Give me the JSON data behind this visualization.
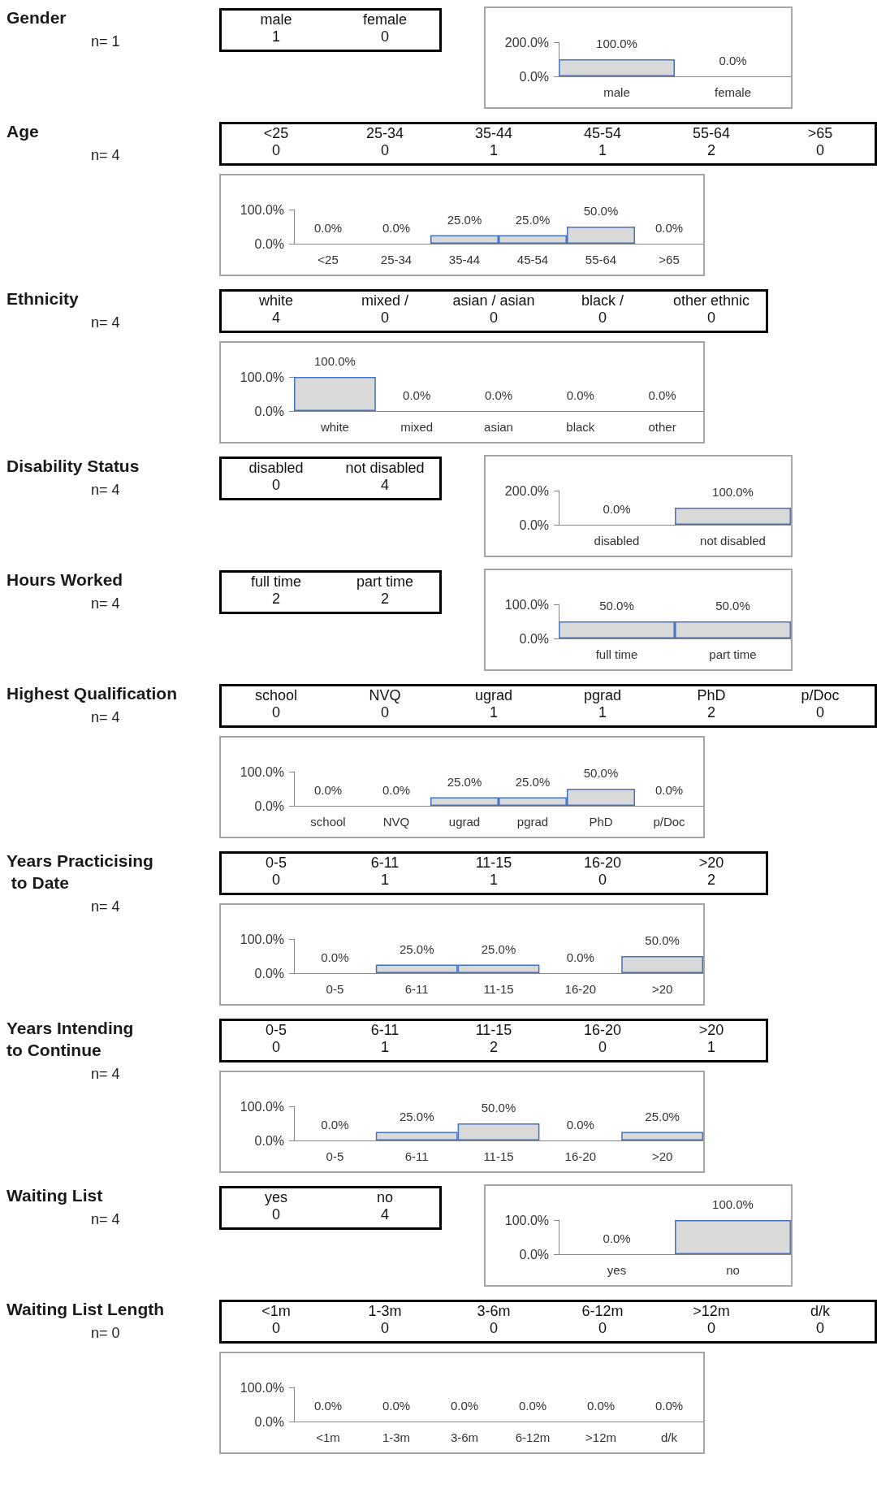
{
  "chart_data": [
    {
      "type": "other",
      "title": "Gender",
      "subtitle": "n= 1",
      "categories": [
        "male",
        "female"
      ],
      "values": [
        1,
        0
      ],
      "data_labels": true
    },
    {
      "type": "bar",
      "categories": [
        "male",
        "female"
      ],
      "values": [
        100,
        0
      ],
      "value_labels": [
        "100.0%",
        "0.0%"
      ],
      "color": "#d9d9d9",
      "ylim": [
        0,
        200
      ],
      "yticks": [
        {
          "value": 0,
          "label": "0.0%"
        },
        {
          "value": 200,
          "label": "200.0%"
        }
      ]
    },
    {
      "type": "other",
      "title": "Age",
      "subtitle": "n= 4",
      "categories": [
        "<25",
        "25-34",
        "35-44",
        "45-54",
        "55-64",
        ">65"
      ],
      "values": [
        0,
        0,
        1,
        1,
        2,
        0
      ],
      "data_labels": true
    },
    {
      "type": "bar",
      "categories": [
        "<25",
        "25-34",
        "35-44",
        "45-54",
        "55-64",
        ">65"
      ],
      "values": [
        0,
        0,
        25,
        25,
        50,
        0
      ],
      "value_labels": [
        "0.0%",
        "0.0%",
        "25.0%",
        "25.0%",
        "50.0%",
        "0.0%"
      ],
      "color": "#d9d9d9",
      "ylim": [
        0,
        100
      ],
      "yticks": [
        {
          "value": 0,
          "label": "0.0%"
        },
        {
          "value": 100,
          "label": "100.0%"
        }
      ]
    },
    {
      "type": "other",
      "title": "Ethnicity",
      "subtitle": "n= 4",
      "categories": [
        "white",
        "mixed /",
        "asian / asian",
        "black /",
        "other ethnic"
      ],
      "values": [
        4,
        0,
        0,
        0,
        0
      ],
      "data_labels": true
    },
    {
      "type": "bar",
      "categories": [
        "white",
        "mixed",
        "asian",
        "black",
        "other"
      ],
      "values": [
        100,
        0,
        0,
        0,
        0
      ],
      "value_labels": [
        "100.0%",
        "0.0%",
        "0.0%",
        "0.0%",
        "0.0%"
      ],
      "color": "#d9d9d9",
      "ylim": [
        0,
        100
      ],
      "yticks": [
        {
          "value": 0,
          "label": "0.0%"
        },
        {
          "value": 100,
          "label": "100.0%"
        }
      ]
    },
    {
      "type": "other",
      "title": "Disability Status",
      "subtitle": "n= 4",
      "categories": [
        "disabled",
        "not disabled"
      ],
      "values": [
        0,
        4
      ],
      "data_labels": true
    },
    {
      "type": "bar",
      "categories": [
        "disabled",
        "not disabled"
      ],
      "values": [
        0,
        100
      ],
      "value_labels": [
        "0.0%",
        "100.0%"
      ],
      "color": "#d9d9d9",
      "ylim": [
        0,
        200
      ],
      "yticks": [
        {
          "value": 0,
          "label": "0.0%"
        },
        {
          "value": 200,
          "label": "200.0%"
        }
      ]
    },
    {
      "type": "other",
      "title": "Hours Worked",
      "subtitle": "n= 4",
      "categories": [
        "full time",
        "part time"
      ],
      "values": [
        2,
        2
      ],
      "data_labels": true
    },
    {
      "type": "bar",
      "categories": [
        "full time",
        "part time"
      ],
      "values": [
        50,
        50
      ],
      "value_labels": [
        "50.0%",
        "50.0%"
      ],
      "color": "#d9d9d9",
      "ylim": [
        0,
        100
      ],
      "yticks": [
        {
          "value": 0,
          "label": "0.0%"
        },
        {
          "value": 100,
          "label": "100.0%"
        }
      ]
    },
    {
      "type": "other",
      "title": "Highest Qualification",
      "subtitle": "n= 4",
      "categories": [
        "school",
        "NVQ",
        "ugrad",
        "pgrad",
        "PhD",
        "p/Doc"
      ],
      "values": [
        0,
        0,
        1,
        1,
        2,
        0
      ],
      "data_labels": true
    },
    {
      "type": "bar",
      "categories": [
        "school",
        "NVQ",
        "ugrad",
        "pgrad",
        "PhD",
        "p/Doc"
      ],
      "values": [
        0,
        0,
        25,
        25,
        50,
        0
      ],
      "value_labels": [
        "0.0%",
        "0.0%",
        "25.0%",
        "25.0%",
        "50.0%",
        "0.0%"
      ],
      "color": "#d9d9d9",
      "ylim": [
        0,
        100
      ],
      "yticks": [
        {
          "value": 0,
          "label": "0.0%"
        },
        {
          "value": 100,
          "label": "100.0%"
        }
      ]
    },
    {
      "type": "other",
      "title": "Years Practicising\n to Date",
      "subtitle": "n= 4",
      "categories": [
        "0-5",
        "6-11",
        "11-15",
        "16-20",
        ">20"
      ],
      "values": [
        0,
        1,
        1,
        0,
        2
      ],
      "data_labels": true
    },
    {
      "type": "bar",
      "categories": [
        "0-5",
        "6-11",
        "11-15",
        "16-20",
        ">20"
      ],
      "values": [
        0,
        25,
        25,
        0,
        50
      ],
      "value_labels": [
        "0.0%",
        "25.0%",
        "25.0%",
        "0.0%",
        "50.0%"
      ],
      "color": "#d9d9d9",
      "ylim": [
        0,
        100
      ],
      "yticks": [
        {
          "value": 0,
          "label": "0.0%"
        },
        {
          "value": 100,
          "label": "100.0%"
        }
      ]
    },
    {
      "type": "other",
      "title": "Years Intending\nto Continue",
      "subtitle": "n= 4",
      "categories": [
        "0-5",
        "6-11",
        "11-15",
        "16-20",
        ">20"
      ],
      "values": [
        0,
        1,
        2,
        0,
        1
      ],
      "data_labels": true
    },
    {
      "type": "bar",
      "categories": [
        "0-5",
        "6-11",
        "11-15",
        "16-20",
        ">20"
      ],
      "values": [
        0,
        25,
        50,
        0,
        25
      ],
      "value_labels": [
        "0.0%",
        "25.0%",
        "50.0%",
        "0.0%",
        "25.0%"
      ],
      "color": "#d9d9d9",
      "ylim": [
        0,
        100
      ],
      "yticks": [
        {
          "value": 0,
          "label": "0.0%"
        },
        {
          "value": 100,
          "label": "100.0%"
        }
      ]
    },
    {
      "type": "other",
      "title": "Waiting List",
      "subtitle": "n= 4",
      "categories": [
        "yes",
        "no"
      ],
      "values": [
        0,
        4
      ],
      "data_labels": true
    },
    {
      "type": "bar",
      "categories": [
        "yes",
        "no"
      ],
      "values": [
        0,
        100
      ],
      "value_labels": [
        "0.0%",
        "100.0%"
      ],
      "color": "#d9d9d9",
      "ylim": [
        0,
        100
      ],
      "yticks": [
        {
          "value": 0,
          "label": "0.0%"
        },
        {
          "value": 100,
          "label": "100.0%"
        }
      ]
    },
    {
      "type": "other",
      "title": "Waiting List Length",
      "subtitle": "n= 0",
      "categories": [
        "<1m",
        "1-3m",
        "3-6m",
        "6-12m",
        ">12m",
        "d/k"
      ],
      "values": [
        0,
        0,
        0,
        0,
        0,
        0
      ],
      "data_labels": true
    },
    {
      "type": "bar",
      "categories": [
        "<1m",
        "1-3m",
        "3-6m",
        "6-12m",
        ">12m",
        "d/k"
      ],
      "values": [
        0,
        0,
        0,
        0,
        0,
        0
      ],
      "value_labels": [
        "0.0%",
        "0.0%",
        "0.0%",
        "0.0%",
        "0.0%",
        "0.0%"
      ],
      "color": "#d9d9d9",
      "ylim": [
        0,
        100
      ],
      "yticks": [
        {
          "value": 0,
          "label": "0.0%"
        },
        {
          "value": 100,
          "label": "100.0%"
        }
      ]
    }
  ]
}
